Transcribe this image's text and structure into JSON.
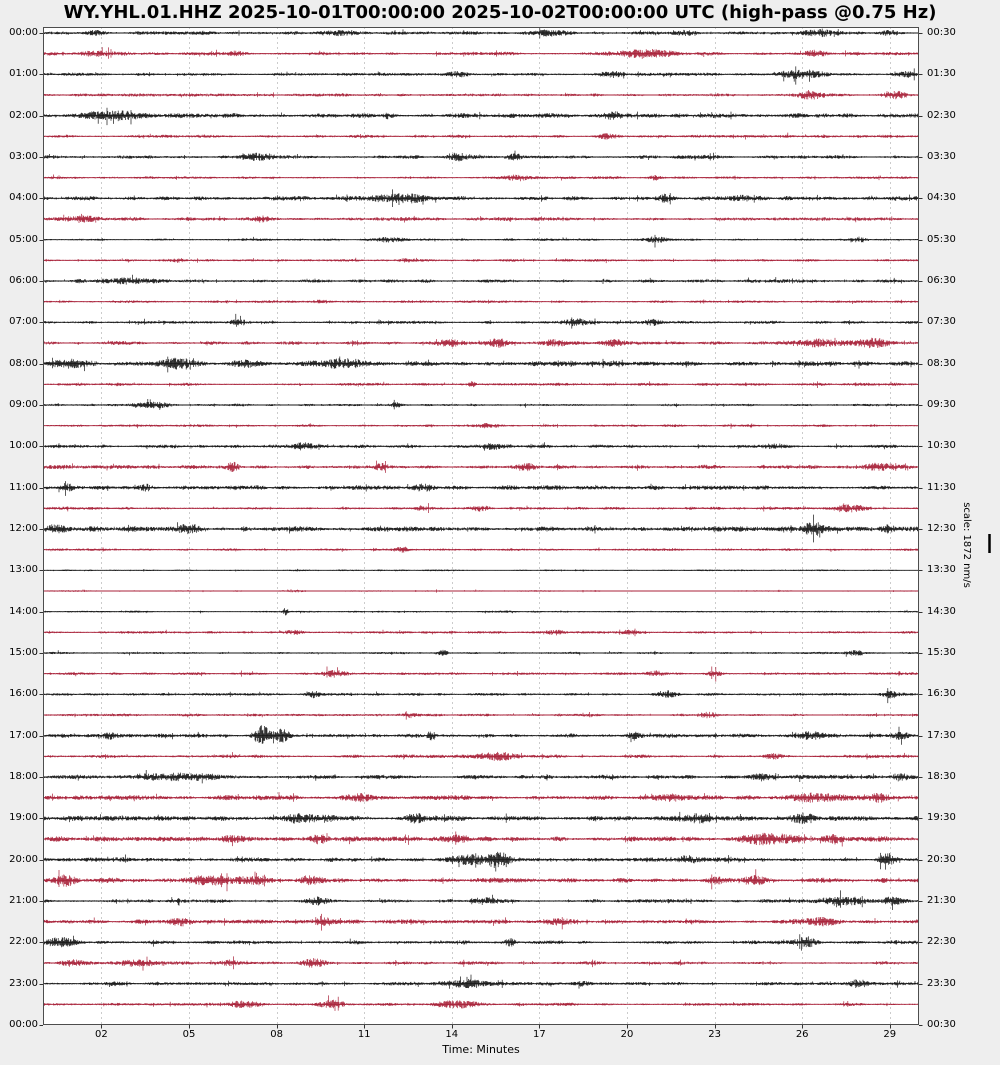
{
  "title": "WY.YHL.01.HHZ 2025-10-01T00:00:00 2025-10-02T00:00:00 UTC (high-pass @0.75 Hz)",
  "xlabel": "Time: Minutes",
  "scale_label": "scale: 1872 nm/s",
  "colors": {
    "figure_bg": "#eeeeee",
    "plot_bg": "#ffffff",
    "frame": "#4d4d4d",
    "grid": "#cccccc",
    "tick": "#333333",
    "trace_black": "#161616",
    "trace_red": "#a82038"
  },
  "x_axis": {
    "range_minutes": [
      0,
      30
    ],
    "ticks": [
      {
        "minute": 2,
        "label": "02"
      },
      {
        "minute": 5,
        "label": "05"
      },
      {
        "minute": 8,
        "label": "08"
      },
      {
        "minute": 11,
        "label": "11"
      },
      {
        "minute": 14,
        "label": "14"
      },
      {
        "minute": 17,
        "label": "17"
      },
      {
        "minute": 20,
        "label": "20"
      },
      {
        "minute": 23,
        "label": "23"
      },
      {
        "minute": 26,
        "label": "26"
      },
      {
        "minute": 29,
        "label": "29"
      }
    ]
  },
  "left_labels": [
    "00:00",
    "01:00",
    "02:00",
    "03:00",
    "04:00",
    "05:00",
    "06:00",
    "07:00",
    "08:00",
    "09:00",
    "10:00",
    "11:00",
    "12:00",
    "13:00",
    "14:00",
    "15:00",
    "16:00",
    "17:00",
    "18:00",
    "19:00",
    "20:00",
    "21:00",
    "22:00",
    "23:00",
    "00:00"
  ],
  "right_labels": [
    "00:30",
    "01:30",
    "02:30",
    "03:30",
    "04:30",
    "05:30",
    "06:30",
    "07:30",
    "08:30",
    "09:30",
    "10:30",
    "11:30",
    "12:30",
    "13:30",
    "14:30",
    "15:30",
    "16:30",
    "17:30",
    "18:30",
    "19:30",
    "20:30",
    "21:30",
    "22:30",
    "23:30",
    "00:30"
  ],
  "chart_data": {
    "type": "line",
    "subtype": "helicorder-dayplot",
    "minutes_per_row": 30,
    "rows": [
      {
        "start": "00:00",
        "end": "00:30",
        "color": "black",
        "amp": 1.1,
        "bursts": [
          [
            1.8,
            1.5,
            0.4
          ],
          [
            10,
            1.5,
            0.8
          ],
          [
            17.3,
            2,
            0.6
          ],
          [
            22,
            1.5,
            0.5
          ],
          [
            26.6,
            2,
            1.0
          ],
          [
            29,
            1.8,
            0.4
          ]
        ]
      },
      {
        "start": "00:30",
        "end": "01:00",
        "color": "red",
        "amp": 1.1,
        "bursts": [
          [
            2,
            1.8,
            0.9
          ],
          [
            6.6,
            1.5,
            0.4
          ],
          [
            20.5,
            2.6,
            1.4
          ],
          [
            26.4,
            1.8,
            0.5
          ]
        ]
      },
      {
        "start": "01:00",
        "end": "01:30",
        "color": "black",
        "amp": 1.0,
        "bursts": [
          [
            14.2,
            1.6,
            0.4
          ],
          [
            19.5,
            2.2,
            0.5
          ],
          [
            26,
            2.8,
            0.9
          ],
          [
            29.6,
            2.5,
            0.3
          ]
        ]
      },
      {
        "start": "01:30",
        "end": "02:00",
        "color": "red",
        "amp": 1.0,
        "bursts": [
          [
            26.3,
            3.2,
            0.5
          ],
          [
            29.2,
            2.6,
            0.5
          ]
        ]
      },
      {
        "start": "02:00",
        "end": "02:30",
        "color": "black",
        "amp": 1.5,
        "bursts": [
          [
            2.4,
            3.0,
            1.1
          ],
          [
            19.6,
            2.6,
            0.3
          ]
        ]
      },
      {
        "start": "02:30",
        "end": "03:00",
        "color": "red",
        "amp": 1.0,
        "bursts": [
          [
            19.3,
            2.2,
            0.4
          ]
        ]
      },
      {
        "start": "03:00",
        "end": "03:30",
        "color": "black",
        "amp": 1.2,
        "bursts": [
          [
            7.3,
            2.6,
            0.6
          ],
          [
            14.3,
            2.2,
            0.4
          ],
          [
            16.2,
            1.8,
            0.3
          ]
        ]
      },
      {
        "start": "03:30",
        "end": "04:00",
        "color": "red",
        "amp": 0.9,
        "bursts": [
          [
            16.2,
            2.2,
            0.5
          ],
          [
            21,
            1.6,
            0.3
          ]
        ]
      },
      {
        "start": "04:00",
        "end": "04:30",
        "color": "black",
        "amp": 1.4,
        "bursts": [
          [
            12.3,
            2.6,
            1.2
          ],
          [
            21.3,
            2.6,
            0.4
          ],
          [
            24,
            1.8,
            0.5
          ]
        ]
      },
      {
        "start": "04:30",
        "end": "05:00",
        "color": "red",
        "amp": 1.2,
        "bursts": [
          [
            1.3,
            1.8,
            1.0
          ],
          [
            7.5,
            1.8,
            0.3
          ]
        ]
      },
      {
        "start": "05:00",
        "end": "05:30",
        "color": "black",
        "amp": 0.85,
        "bursts": [
          [
            11.8,
            1.8,
            0.5
          ],
          [
            21,
            1.8,
            0.4
          ],
          [
            28,
            1.6,
            0.3
          ]
        ]
      },
      {
        "start": "05:30",
        "end": "06:00",
        "color": "red",
        "amp": 0.85,
        "bursts": [
          [
            4.6,
            1.3,
            0.3
          ],
          [
            12.5,
            1.3,
            0.4
          ]
        ]
      },
      {
        "start": "06:00",
        "end": "06:30",
        "color": "black",
        "amp": 1.1,
        "bursts": [
          [
            2.6,
            1.8,
            1.2
          ]
        ]
      },
      {
        "start": "06:30",
        "end": "07:00",
        "color": "red",
        "amp": 0.85,
        "bursts": [
          [
            9.5,
            1.2,
            0.4
          ]
        ]
      },
      {
        "start": "07:00",
        "end": "07:30",
        "color": "black",
        "amp": 1.0,
        "bursts": [
          [
            6.7,
            2.6,
            0.3
          ],
          [
            18.2,
            2.6,
            0.5
          ],
          [
            20.9,
            1.8,
            0.3
          ]
        ]
      },
      {
        "start": "07:30",
        "end": "08:00",
        "color": "red",
        "amp": 1.2,
        "bursts": [
          [
            14,
            2.4,
            0.6
          ],
          [
            15.6,
            3.0,
            0.5
          ],
          [
            17.5,
            2.6,
            0.5
          ],
          [
            19.5,
            2.2,
            0.5
          ],
          [
            26.6,
            2.6,
            1.2
          ],
          [
            28.5,
            2.8,
            0.6
          ]
        ]
      },
      {
        "start": "08:00",
        "end": "08:30",
        "color": "black",
        "amp": 1.5,
        "bursts": [
          [
            1,
            2.4,
            0.7
          ],
          [
            4.5,
            2.8,
            0.8
          ],
          [
            7,
            2.2,
            0.6
          ],
          [
            10.2,
            2.4,
            1.2
          ],
          [
            19.5,
            1.8,
            0.5
          ]
        ]
      },
      {
        "start": "08:30",
        "end": "09:00",
        "color": "red",
        "amp": 1.0,
        "bursts": [
          [
            14.7,
            2.2,
            0.15
          ]
        ]
      },
      {
        "start": "09:00",
        "end": "09:30",
        "color": "black",
        "amp": 0.85,
        "bursts": [
          [
            3.8,
            1.9,
            0.8
          ],
          [
            12.1,
            1.9,
            0.2
          ]
        ]
      },
      {
        "start": "09:30",
        "end": "10:00",
        "color": "red",
        "amp": 0.85,
        "bursts": [
          [
            15.3,
            1.8,
            0.4
          ]
        ]
      },
      {
        "start": "10:00",
        "end": "10:30",
        "color": "black",
        "amp": 1.1,
        "bursts": [
          [
            8.9,
            2.2,
            0.4
          ],
          [
            15.4,
            2.2,
            0.4
          ],
          [
            25,
            1.8,
            0.4
          ]
        ]
      },
      {
        "start": "10:30",
        "end": "11:00",
        "color": "red",
        "amp": 1.3,
        "bursts": [
          [
            6.5,
            3.4,
            0.25
          ],
          [
            11.6,
            2.2,
            0.4
          ],
          [
            16.5,
            2.2,
            0.4
          ],
          [
            28.6,
            2.6,
            0.7
          ]
        ]
      },
      {
        "start": "11:00",
        "end": "11:30",
        "color": "black",
        "amp": 1.5,
        "bursts": [
          [
            0.8,
            3.4,
            0.25
          ],
          [
            3.5,
            2.6,
            0.25
          ],
          [
            13,
            2.2,
            0.5
          ]
        ]
      },
      {
        "start": "11:30",
        "end": "12:00",
        "color": "red",
        "amp": 0.95,
        "bursts": [
          [
            13,
            1.8,
            0.3
          ],
          [
            15,
            1.6,
            0.3
          ],
          [
            27.6,
            2.2,
            0.8
          ]
        ]
      },
      {
        "start": "12:00",
        "end": "12:30",
        "color": "black",
        "amp": 1.7,
        "bursts": [
          [
            0.4,
            2.6,
            0.4
          ],
          [
            5,
            2.2,
            0.5
          ],
          [
            26.4,
            4.0,
            0.45
          ],
          [
            28.9,
            2.6,
            0.3
          ]
        ]
      },
      {
        "start": "12:30",
        "end": "13:00",
        "color": "red",
        "amp": 0.85,
        "bursts": [
          [
            12.3,
            2.2,
            0.3
          ]
        ]
      },
      {
        "start": "13:00",
        "end": "13:30",
        "color": "black",
        "amp": 0.55,
        "bursts": []
      },
      {
        "start": "13:30",
        "end": "14:00",
        "color": "red",
        "amp": 0.5,
        "bursts": [
          [
            8.7,
            1.0,
            0.3
          ]
        ]
      },
      {
        "start": "14:00",
        "end": "14:30",
        "color": "black",
        "amp": 0.65,
        "bursts": [
          [
            8.3,
            3.2,
            0.12
          ]
        ]
      },
      {
        "start": "14:30",
        "end": "15:00",
        "color": "red",
        "amp": 0.85,
        "bursts": [
          [
            8.6,
            1.6,
            0.4
          ],
          [
            17.5,
            1.6,
            0.4
          ],
          [
            20,
            1.4,
            0.4
          ]
        ]
      },
      {
        "start": "15:00",
        "end": "15:30",
        "color": "black",
        "amp": 0.75,
        "bursts": [
          [
            13.7,
            2.2,
            0.2
          ],
          [
            27.8,
            1.8,
            0.4
          ]
        ]
      },
      {
        "start": "15:30",
        "end": "16:00",
        "color": "red",
        "amp": 0.9,
        "bursts": [
          [
            10,
            2.2,
            0.5
          ],
          [
            21,
            1.8,
            0.4
          ],
          [
            23,
            1.8,
            0.3
          ]
        ]
      },
      {
        "start": "16:00",
        "end": "16:30",
        "color": "black",
        "amp": 0.95,
        "bursts": [
          [
            9.3,
            2.2,
            0.3
          ],
          [
            21.3,
            2.2,
            0.4
          ],
          [
            29,
            2.2,
            0.3
          ]
        ]
      },
      {
        "start": "16:30",
        "end": "17:00",
        "color": "red",
        "amp": 0.9,
        "bursts": [
          [
            12.5,
            1.8,
            0.3
          ],
          [
            22.8,
            1.8,
            0.4
          ]
        ]
      },
      {
        "start": "17:00",
        "end": "17:30",
        "color": "black",
        "amp": 1.3,
        "bursts": [
          [
            2.3,
            2.6,
            0.3
          ],
          [
            7.5,
            7.5,
            0.35
          ],
          [
            8.2,
            5.0,
            0.3
          ],
          [
            13.3,
            4.2,
            0.15
          ],
          [
            20.3,
            3.0,
            0.3
          ],
          [
            26.3,
            3.0,
            0.5
          ],
          [
            29.4,
            2.6,
            0.3
          ]
        ]
      },
      {
        "start": "17:30",
        "end": "18:00",
        "color": "red",
        "amp": 1.1,
        "bursts": [
          [
            15.5,
            2.2,
            1.0
          ],
          [
            25,
            1.8,
            0.4
          ]
        ]
      },
      {
        "start": "18:00",
        "end": "18:30",
        "color": "black",
        "amp": 1.4,
        "bursts": [
          [
            4.6,
            2.2,
            1.6
          ],
          [
            24.6,
            2.6,
            0.5
          ],
          [
            29.3,
            2.6,
            0.3
          ]
        ]
      },
      {
        "start": "18:30",
        "end": "19:00",
        "color": "red",
        "amp": 1.5,
        "bursts": [
          [
            10.8,
            2.6,
            0.4
          ],
          [
            21.5,
            2.2,
            0.4
          ],
          [
            26.6,
            3.0,
            1.2
          ],
          [
            28.6,
            2.6,
            0.4
          ]
        ]
      },
      {
        "start": "19:00",
        "end": "19:30",
        "color": "black",
        "amp": 1.7,
        "bursts": [
          [
            9,
            2.6,
            0.9
          ],
          [
            12.7,
            3.0,
            0.4
          ],
          [
            22.5,
            2.6,
            0.4
          ],
          [
            26,
            2.6,
            0.5
          ]
        ]
      },
      {
        "start": "19:30",
        "end": "20:00",
        "color": "red",
        "amp": 1.7,
        "bursts": [
          [
            6.5,
            2.6,
            0.4
          ],
          [
            9.5,
            2.6,
            0.4
          ],
          [
            14.3,
            2.6,
            0.5
          ],
          [
            24.9,
            3.4,
            1.2
          ],
          [
            27.1,
            3.0,
            0.5
          ]
        ]
      },
      {
        "start": "20:00",
        "end": "20:30",
        "color": "black",
        "amp": 1.4,
        "bursts": [
          [
            14.8,
            3.4,
            0.9
          ],
          [
            15.6,
            4.4,
            0.4
          ],
          [
            22,
            2.6,
            0.4
          ],
          [
            28.9,
            3.4,
            0.3
          ]
        ]
      },
      {
        "start": "20:30",
        "end": "21:00",
        "color": "red",
        "amp": 1.6,
        "bursts": [
          [
            0.8,
            4.4,
            0.4
          ],
          [
            5.8,
            3.0,
            1.2
          ],
          [
            7.4,
            2.6,
            0.4
          ],
          [
            9.1,
            2.6,
            0.4
          ],
          [
            23,
            2.6,
            0.4
          ],
          [
            24.4,
            2.6,
            0.4
          ]
        ]
      },
      {
        "start": "21:00",
        "end": "21:30",
        "color": "black",
        "amp": 1.2,
        "bursts": [
          [
            9.4,
            2.2,
            0.4
          ],
          [
            15.1,
            2.6,
            0.5
          ],
          [
            27.4,
            3.0,
            1.1
          ],
          [
            29.1,
            3.0,
            0.4
          ]
        ]
      },
      {
        "start": "21:30",
        "end": "22:00",
        "color": "red",
        "amp": 1.4,
        "bursts": [
          [
            4.7,
            2.6,
            0.4
          ],
          [
            9.6,
            2.2,
            0.4
          ],
          [
            17.6,
            2.6,
            0.4
          ],
          [
            26.6,
            2.6,
            0.9
          ]
        ]
      },
      {
        "start": "22:00",
        "end": "22:30",
        "color": "black",
        "amp": 1.3,
        "bursts": [
          [
            0.6,
            3.4,
            0.6
          ],
          [
            16,
            2.6,
            0.2
          ],
          [
            26.1,
            2.6,
            0.5
          ]
        ]
      },
      {
        "start": "22:30",
        "end": "23:00",
        "color": "red",
        "amp": 1.1,
        "bursts": [
          [
            1,
            2.6,
            0.5
          ],
          [
            3.1,
            2.2,
            0.9
          ],
          [
            6.4,
            2.2,
            0.4
          ],
          [
            9.3,
            2.6,
            0.5
          ]
        ]
      },
      {
        "start": "23:00",
        "end": "23:30",
        "color": "black",
        "amp": 1.1,
        "bursts": [
          [
            2.4,
            1.8,
            0.3
          ],
          [
            14.6,
            2.6,
            0.9
          ],
          [
            18.4,
            1.8,
            0.4
          ],
          [
            27.9,
            2.2,
            0.4
          ]
        ]
      },
      {
        "start": "23:30",
        "end": "00:00",
        "color": "red",
        "amp": 1.0,
        "bursts": [
          [
            6.9,
            2.2,
            0.7
          ],
          [
            9.9,
            2.6,
            0.5
          ],
          [
            14.1,
            2.2,
            0.9
          ]
        ]
      }
    ]
  }
}
